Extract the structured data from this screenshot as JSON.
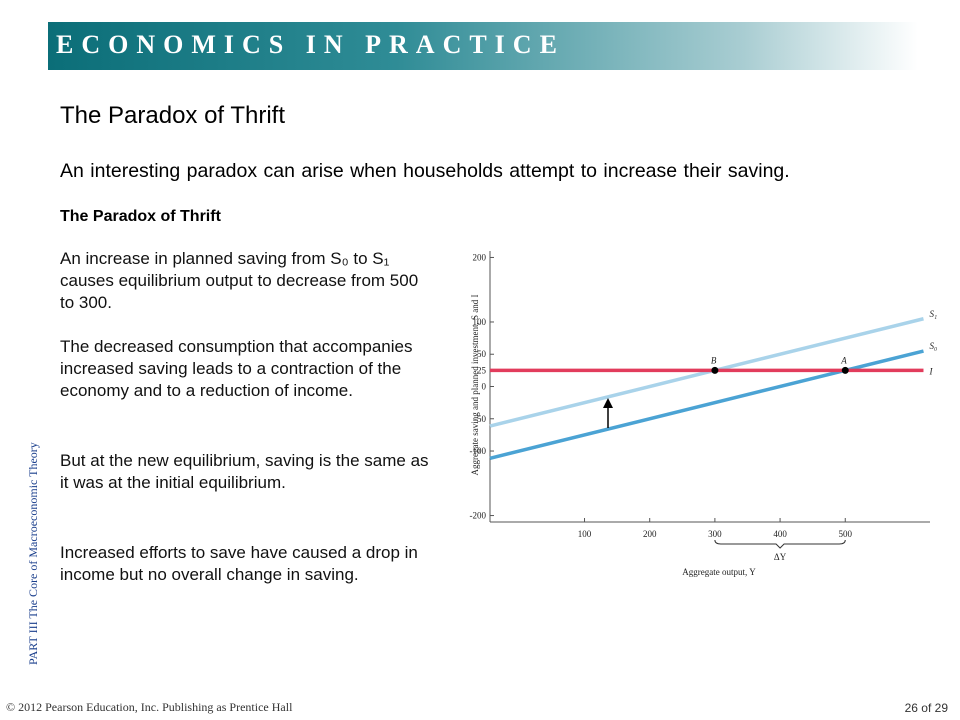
{
  "header": {
    "banner": "ECONOMICS IN PRACTICE",
    "title": "The Paradox of Thrift",
    "subtitle": "An interesting paradox can arise when households attempt to increase their saving."
  },
  "figure": {
    "heading": "The Paradox of Thrift",
    "paragraphs": [
      "An increase in planned saving from S₀ to S₁ causes equilibrium output to decrease from 500 to 300.",
      "The decreased consumption that accompanies increased saving leads to a contraction of the economy and to a reduction of income.",
      "But at the new equilibrium, saving is the same as it was at the initial equilibrium.",
      "Increased efforts to save have caused a drop in income but no overall change in saving."
    ]
  },
  "side_label": "PART III  The Core of Macroeconomic Theory",
  "footer": {
    "copyright": "© 2012 Pearson Education, Inc. Publishing as Prentice Hall",
    "page": "26 of 29"
  },
  "chart_data": {
    "type": "line",
    "xlabel": "Aggregate output, Y",
    "ylabel": "Aggregate saving and planned investment, S and I",
    "xlim": [
      -45,
      630
    ],
    "ylim": [
      -210,
      210
    ],
    "xticks": [
      100,
      200,
      300,
      400,
      500
    ],
    "yticks": [
      200,
      100,
      50,
      25,
      0,
      -50,
      -100,
      -200
    ],
    "x": [
      -45,
      620
    ],
    "series": [
      {
        "name": "S₁",
        "color": "#a9d3ea",
        "values": [
          -61.25,
          105
        ]
      },
      {
        "name": "S₀",
        "color": "#4ba3d4",
        "values": [
          -111.25,
          55
        ]
      },
      {
        "name": "I",
        "color": "#e23c5c",
        "values": [
          25,
          25
        ]
      }
    ],
    "points": [
      {
        "label": "B",
        "x": 300,
        "y": 25
      },
      {
        "label": "A",
        "x": 500,
        "y": 25
      }
    ],
    "bracket": {
      "label": "ΔY",
      "x": [
        300,
        500
      ]
    }
  }
}
